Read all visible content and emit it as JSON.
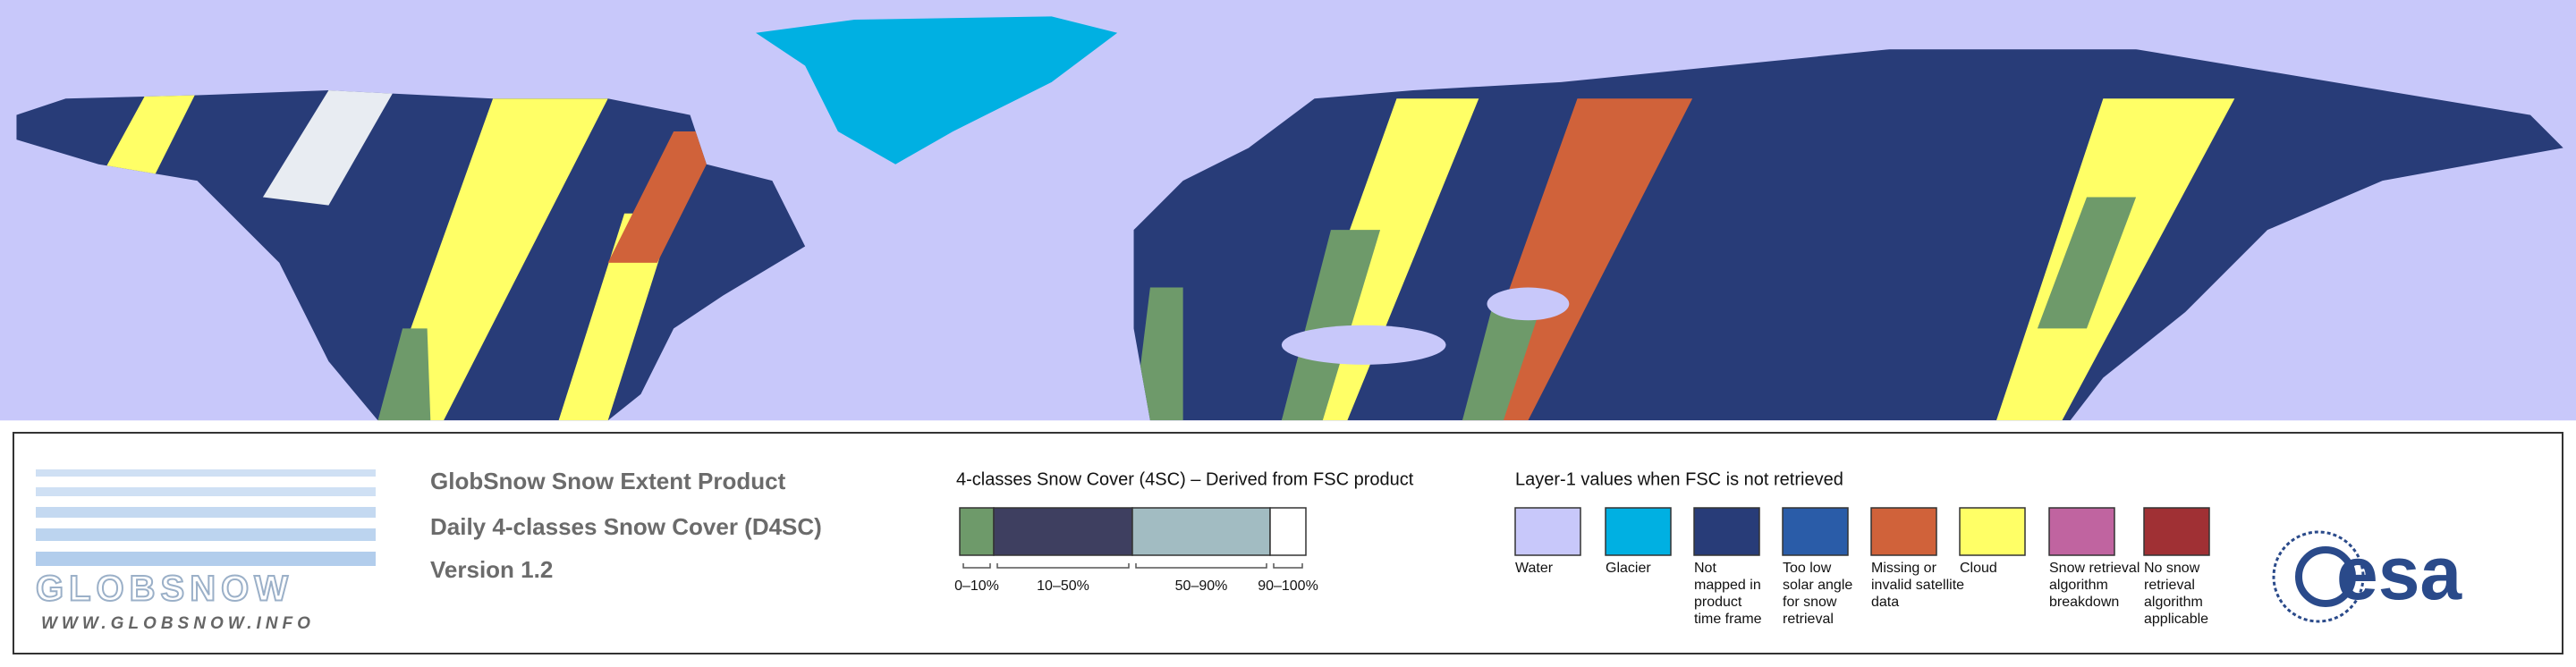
{
  "logo": {
    "name": "GLOBSNOW",
    "url": "WWW.GLOBSNOW.INFO"
  },
  "product": {
    "lines": [
      "GlobSnow Snow Extent Product",
      "Daily 4-classes Snow Cover (D4SC)",
      "Version 1.2"
    ]
  },
  "four_class": {
    "title": "4-classes Snow Cover (4SC) – Derived from FSC product",
    "classes": [
      {
        "label": "0–10%",
        "color": "#6e9a6a"
      },
      {
        "label": "10–50%",
        "color": "#3e3f60"
      },
      {
        "label": "50–90%",
        "color": "#a2bcc2"
      },
      {
        "label": "90–100%",
        "color": "#ffffff"
      }
    ]
  },
  "layer1": {
    "title": "Layer-1 values when FSC is not retrieved",
    "classes": [
      {
        "lines": [
          "Water"
        ],
        "color": "#c8c8fa"
      },
      {
        "lines": [
          "Glacier"
        ],
        "color": "#00b0e2"
      },
      {
        "lines": [
          "Not",
          "mapped in",
          "product",
          "time frame"
        ],
        "color": "#283c78"
      },
      {
        "lines": [
          "Too low",
          "solar angle",
          "for snow",
          "retrieval"
        ],
        "color": "#2a5ca8"
      },
      {
        "lines": [
          "Missing or",
          "invalid satellite",
          "data"
        ],
        "color": "#d0623a"
      },
      {
        "lines": [
          "Cloud"
        ],
        "color": "#ffff66"
      },
      {
        "lines": [
          "Snow retrieval",
          "algorithm",
          "breakdown"
        ],
        "color": "#c064a0"
      },
      {
        "lines": [
          "No snow",
          "retrieval",
          "algorithm",
          "applicable"
        ],
        "color": "#a03034"
      }
    ]
  },
  "agency": "esa"
}
